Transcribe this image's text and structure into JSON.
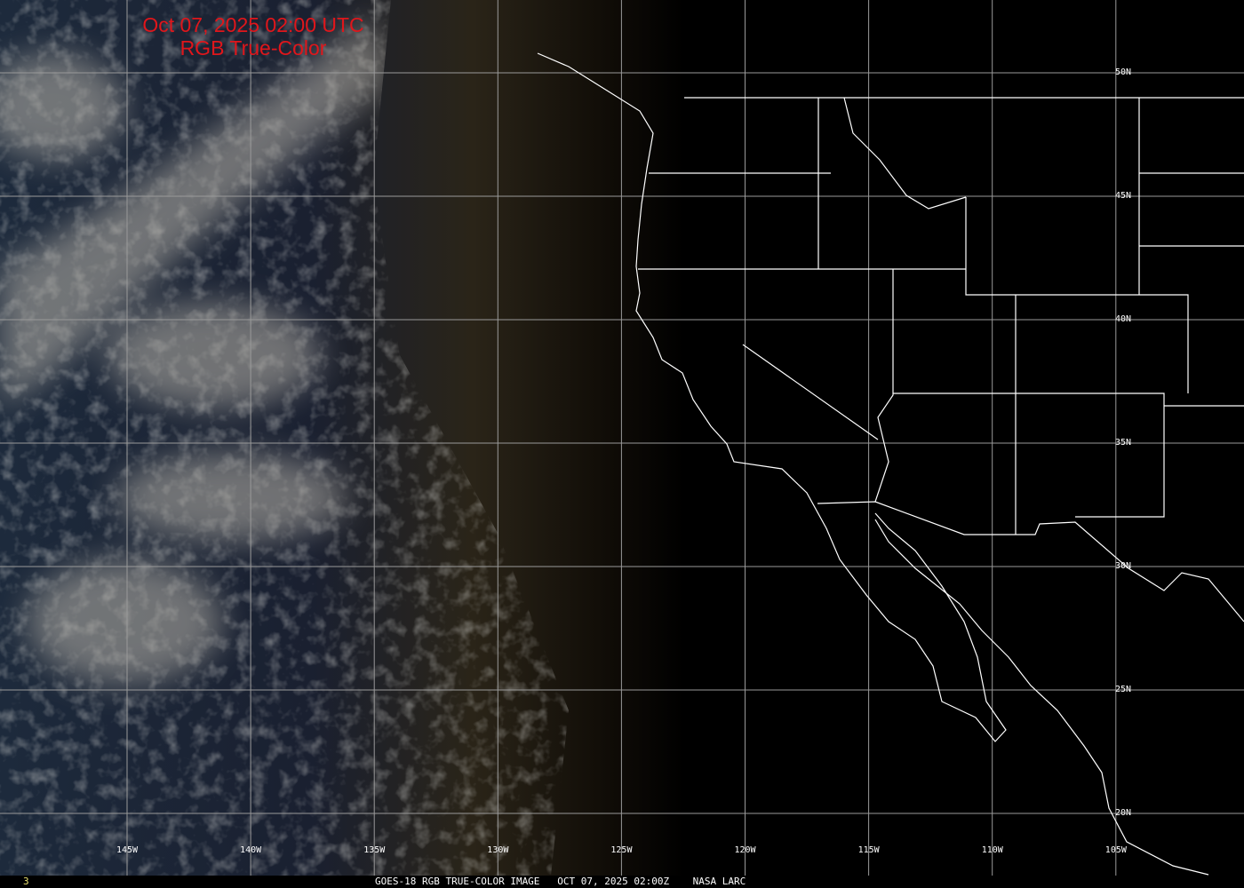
{
  "title": {
    "line1": "Oct 07, 2025 02:00 UTC",
    "line2": "RGB True-Color"
  },
  "longitude_labels": [
    "145W",
    "140W",
    "135W",
    "130W",
    "125W",
    "120W",
    "115W",
    "110W",
    "105W"
  ],
  "latitude_labels": [
    "50N",
    "45N",
    "40N",
    "35N",
    "30N",
    "25N",
    "20N"
  ],
  "footer": {
    "frame_number": "3",
    "caption": "GOES-18 RGB TRUE-COLOR IMAGE   OCT 07, 2025 02:00Z    NASA LARC"
  },
  "colors": {
    "title": "#e0161b",
    "grid": "#9a9a9a",
    "boundaries": "#ffffff",
    "frame_number": "#e8e070"
  }
}
